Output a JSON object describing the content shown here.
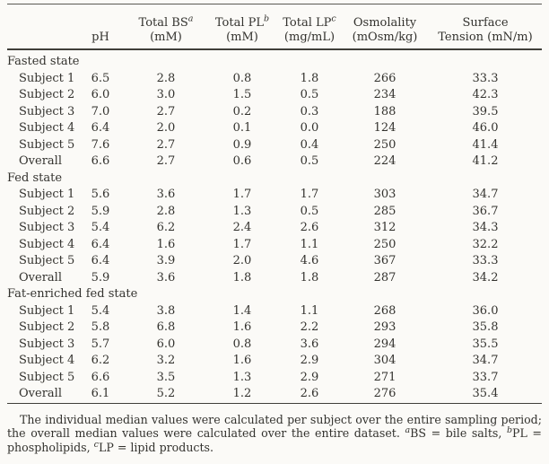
{
  "colors": {
    "background": "#fbfaf7",
    "ink": "#33322e",
    "rule": "#403f3a"
  },
  "table": {
    "columns": [
      {
        "line1": "",
        "sup": "",
        "line2": "pH"
      },
      {
        "line1": "Total BS",
        "sup": "a",
        "line2": "(mM)"
      },
      {
        "line1": "Total PL",
        "sup": "b",
        "line2": "(mM)"
      },
      {
        "line1": "Total LP",
        "sup": "c",
        "line2": "(mg/mL)"
      },
      {
        "line1": "Osmolality",
        "sup": "",
        "line2": "(mOsm/kg)"
      },
      {
        "line1": "Surface",
        "sup": "",
        "line2": "Tension (mN/m)"
      }
    ],
    "groups": [
      {
        "label": "Fasted state",
        "rows": [
          {
            "label": "Subject 1",
            "values": [
              "6.5",
              "2.8",
              "0.8",
              "1.8",
              "266",
              "33.3"
            ]
          },
          {
            "label": "Subject 2",
            "values": [
              "6.0",
              "3.0",
              "1.5",
              "0.5",
              "234",
              "42.3"
            ]
          },
          {
            "label": "Subject 3",
            "values": [
              "7.0",
              "2.7",
              "0.2",
              "0.3",
              "188",
              "39.5"
            ]
          },
          {
            "label": "Subject 4",
            "values": [
              "6.4",
              "2.0",
              "0.1",
              "0.0",
              "124",
              "46.0"
            ]
          },
          {
            "label": "Subject 5",
            "values": [
              "7.6",
              "2.7",
              "0.9",
              "0.4",
              "250",
              "41.4"
            ]
          },
          {
            "label": "Overall",
            "values": [
              "6.6",
              "2.7",
              "0.6",
              "0.5",
              "224",
              "41.2"
            ]
          }
        ]
      },
      {
        "label": "Fed state",
        "rows": [
          {
            "label": "Subject 1",
            "values": [
              "5.6",
              "3.6",
              "1.7",
              "1.7",
              "303",
              "34.7"
            ]
          },
          {
            "label": "Subject 2",
            "values": [
              "5.9",
              "2.8",
              "1.3",
              "0.5",
              "285",
              "36.7"
            ]
          },
          {
            "label": "Subject 3",
            "values": [
              "5.4",
              "6.2",
              "2.4",
              "2.6",
              "312",
              "34.3"
            ]
          },
          {
            "label": "Subject 4",
            "values": [
              "6.4",
              "1.6",
              "1.7",
              "1.1",
              "250",
              "32.2"
            ]
          },
          {
            "label": "Subject 5",
            "values": [
              "6.4",
              "3.9",
              "2.0",
              "4.6",
              "367",
              "33.3"
            ]
          },
          {
            "label": "Overall",
            "values": [
              "5.9",
              "3.6",
              "1.8",
              "1.8",
              "287",
              "34.2"
            ]
          }
        ]
      },
      {
        "label": "Fat-enriched fed state",
        "rows": [
          {
            "label": "Subject 1",
            "values": [
              "5.4",
              "3.8",
              "1.4",
              "1.1",
              "268",
              "36.0"
            ]
          },
          {
            "label": "Subject 2",
            "values": [
              "5.8",
              "6.8",
              "1.6",
              "2.2",
              "293",
              "35.8"
            ]
          },
          {
            "label": "Subject 3",
            "values": [
              "5.7",
              "6.0",
              "0.8",
              "3.6",
              "294",
              "35.5"
            ]
          },
          {
            "label": "Subject 4",
            "values": [
              "6.2",
              "3.2",
              "1.6",
              "2.9",
              "304",
              "34.7"
            ]
          },
          {
            "label": "Subject 5",
            "values": [
              "6.6",
              "3.5",
              "1.3",
              "2.9",
              "271",
              "33.7"
            ]
          },
          {
            "label": "Overall",
            "values": [
              "6.1",
              "5.2",
              "1.2",
              "2.6",
              "276",
              "35.4"
            ]
          }
        ]
      }
    ]
  },
  "footnote": {
    "part1": "The individual median values were calculated per subject over the entire sampling period; the overall median values were calculated over the entire dataset. ",
    "sup_a": "a",
    "part2": "BS = bile salts, ",
    "sup_b": "b",
    "part3": "PL = phospholipids, ",
    "sup_c": "c",
    "part4": "LP = lipid products."
  }
}
